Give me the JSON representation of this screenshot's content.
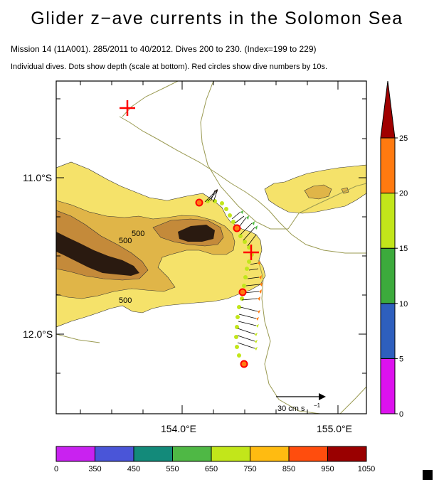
{
  "title": "Glider z−ave currents in the Solomon Sea",
  "subtitle_mission": "Mission 14 (11A001). 285/2011 to 40/2012. Dives 200 to 230. (Index=199 to 229)",
  "subtitle_desc": "Individual dives. Dots show depth (scale at bottom). Red circles show dive numbers by 10s.",
  "map": {
    "lat_labels": [
      "11.0°S",
      "12.0°S"
    ],
    "lon_labels": [
      "154.0°E",
      "155.0°E"
    ],
    "contour_labels": [
      "500",
      "500",
      "500"
    ],
    "reference_vector_label": "30 cm s",
    "reference_vector_exponent": "−1"
  },
  "speed_colorbar": {
    "tick_labels": [
      "0",
      "5",
      "10",
      "15",
      "20",
      "25"
    ],
    "colors": [
      "#dd11ee",
      "#2e5fbd",
      "#3caa3c",
      "#c2e61a",
      "#ff7a10",
      "#a00000"
    ]
  },
  "depth_colorbar": {
    "tick_labels": [
      "0",
      "350",
      "450",
      "550",
      "650",
      "750",
      "850",
      "950",
      "1050"
    ],
    "colors": [
      "#c922f0",
      "#4a55d8",
      "#138a7a",
      "#4fb845",
      "#c2e61a",
      "#ffbb11",
      "#ff4d0d",
      "#9a0000"
    ]
  },
  "colors": {
    "bathy_light": "#f5e26a",
    "bathy_mid": "#e0b548",
    "bathy_deep": "#c48a3a",
    "bathy_darkest": "#2a1a10",
    "coast": "#9a9a52",
    "track": "#c2e61a",
    "marker": "#ff0000"
  }
}
